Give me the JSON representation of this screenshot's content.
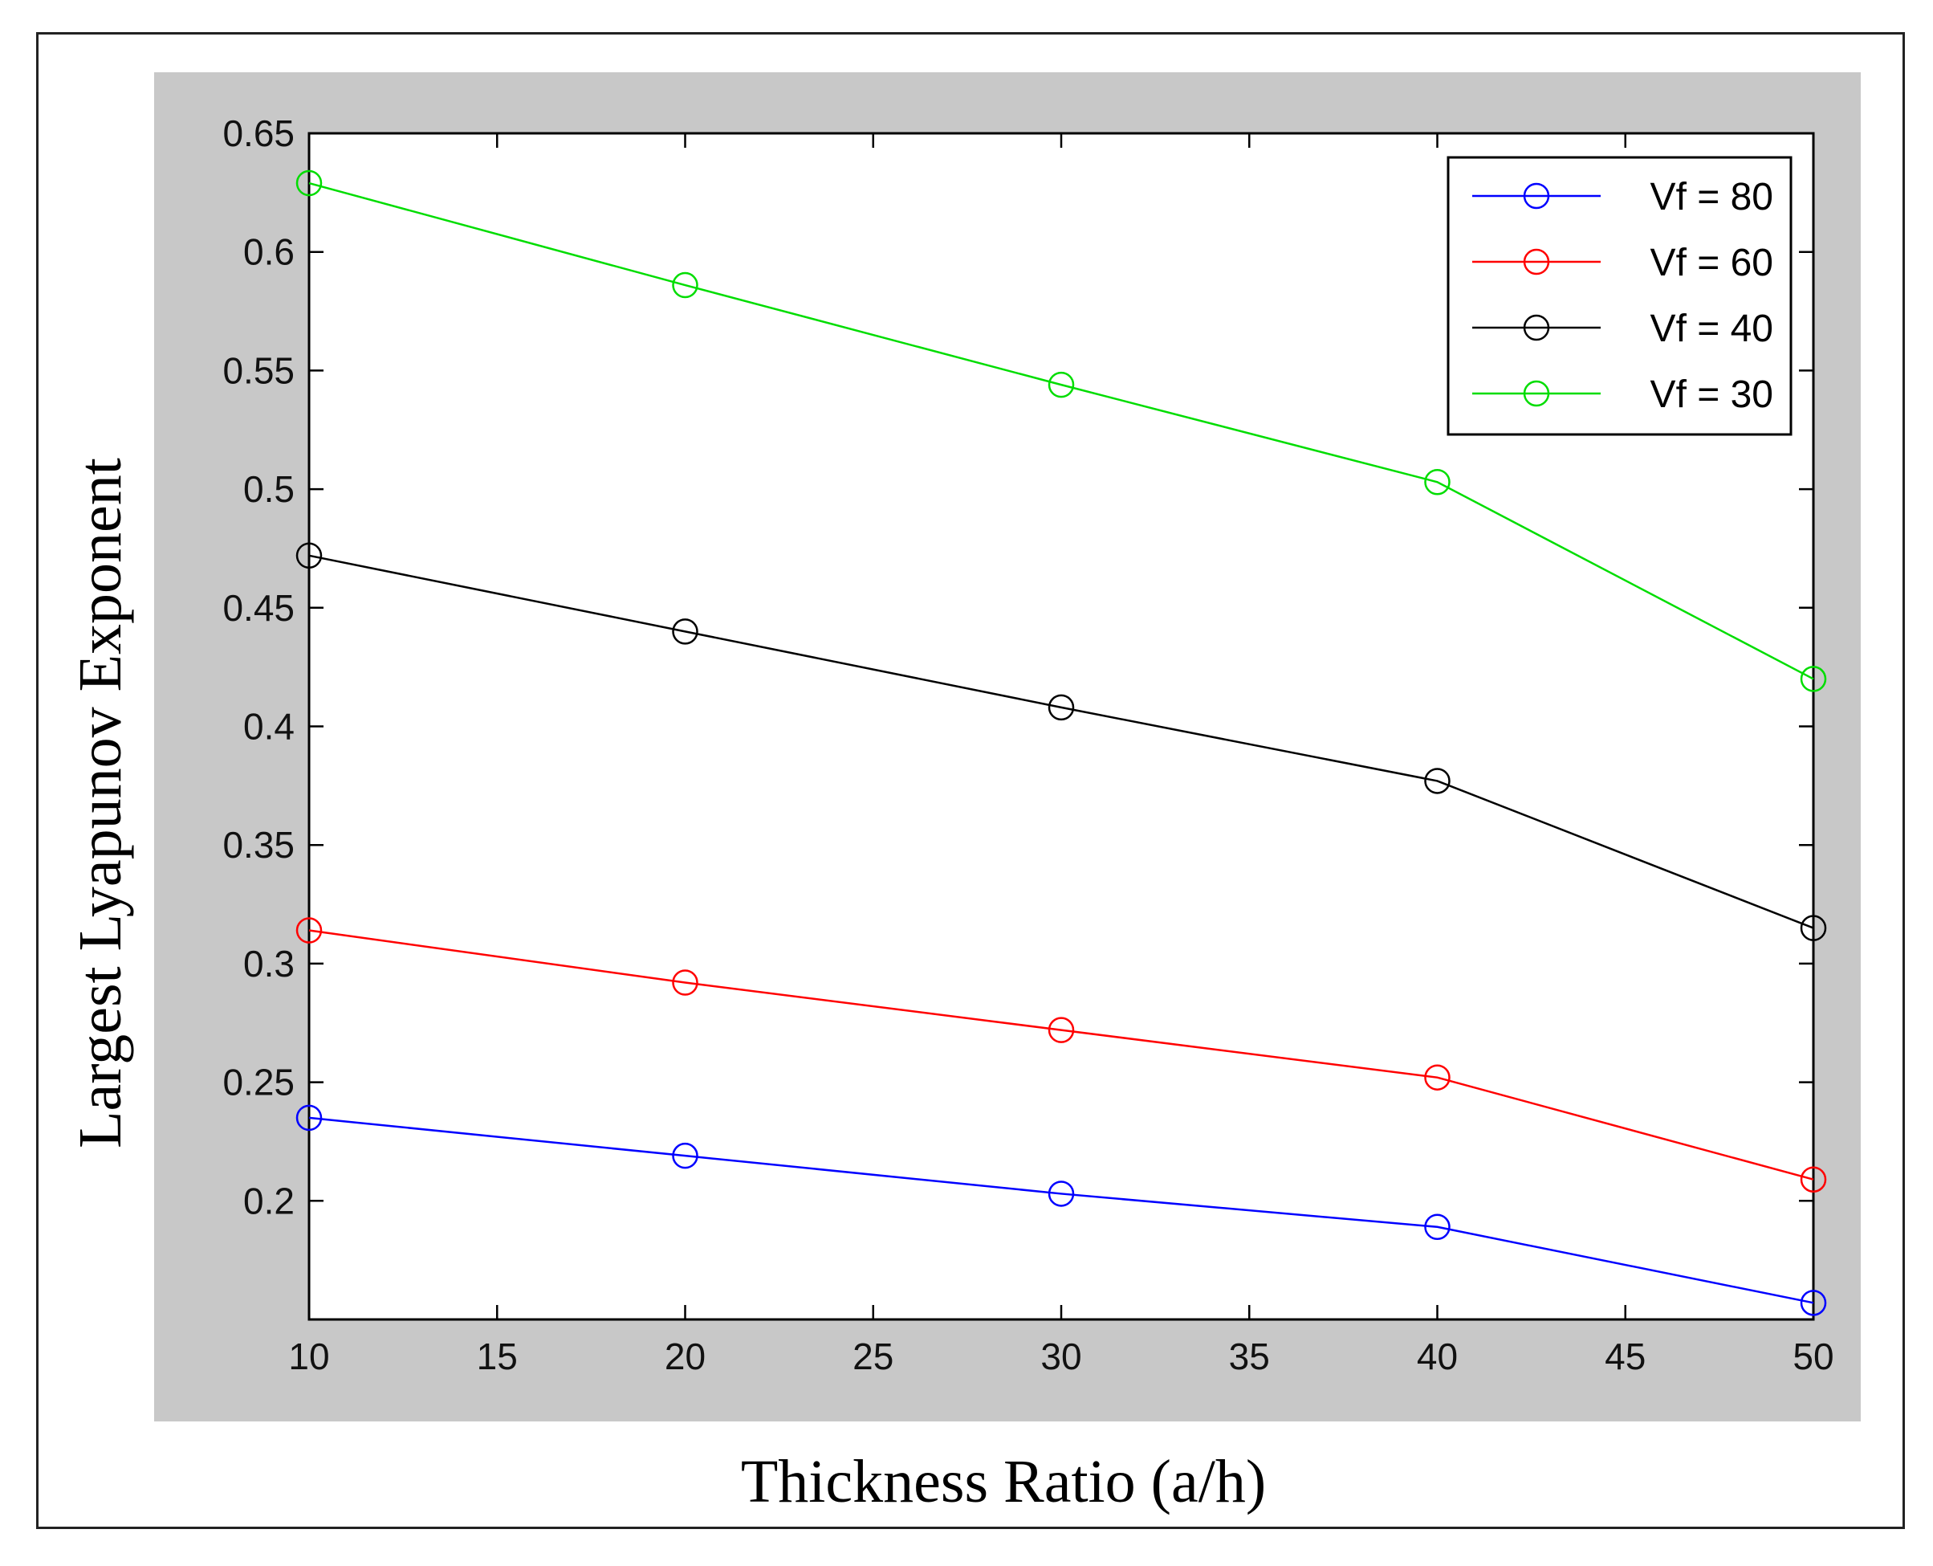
{
  "chart_data": {
    "type": "line",
    "title": "",
    "xlabel": "Thickness Ratio (a/h)",
    "ylabel": "Largest Lyapunov Exponent",
    "xlim": [
      10,
      50
    ],
    "ylim": [
      0.15,
      0.65
    ],
    "xticks": [
      "10",
      "15",
      "20",
      "25",
      "30",
      "35",
      "40",
      "45",
      "50"
    ],
    "yticks": [
      "0.2",
      "0.25",
      "0.3",
      "0.35",
      "0.4",
      "0.45",
      "0.5",
      "0.55",
      "0.6",
      "0.65"
    ],
    "grid": false,
    "legend_position": "top-right",
    "x": [
      10,
      20,
      30,
      40,
      50
    ],
    "series": [
      {
        "name": "Vf = 80",
        "color": "#0000ff",
        "marker": "circle",
        "values": [
          0.235,
          0.219,
          0.203,
          0.189,
          0.157
        ]
      },
      {
        "name": "Vf = 60",
        "color": "#ff0000",
        "marker": "circle",
        "values": [
          0.314,
          0.292,
          0.272,
          0.252,
          0.209
        ]
      },
      {
        "name": "Vf = 40",
        "color": "#000000",
        "marker": "circle",
        "values": [
          0.472,
          0.44,
          0.408,
          0.377,
          0.315
        ]
      },
      {
        "name": "Vf = 30",
        "color": "#00dd00",
        "marker": "circle",
        "values": [
          0.629,
          0.586,
          0.544,
          0.503,
          0.42
        ]
      }
    ]
  }
}
